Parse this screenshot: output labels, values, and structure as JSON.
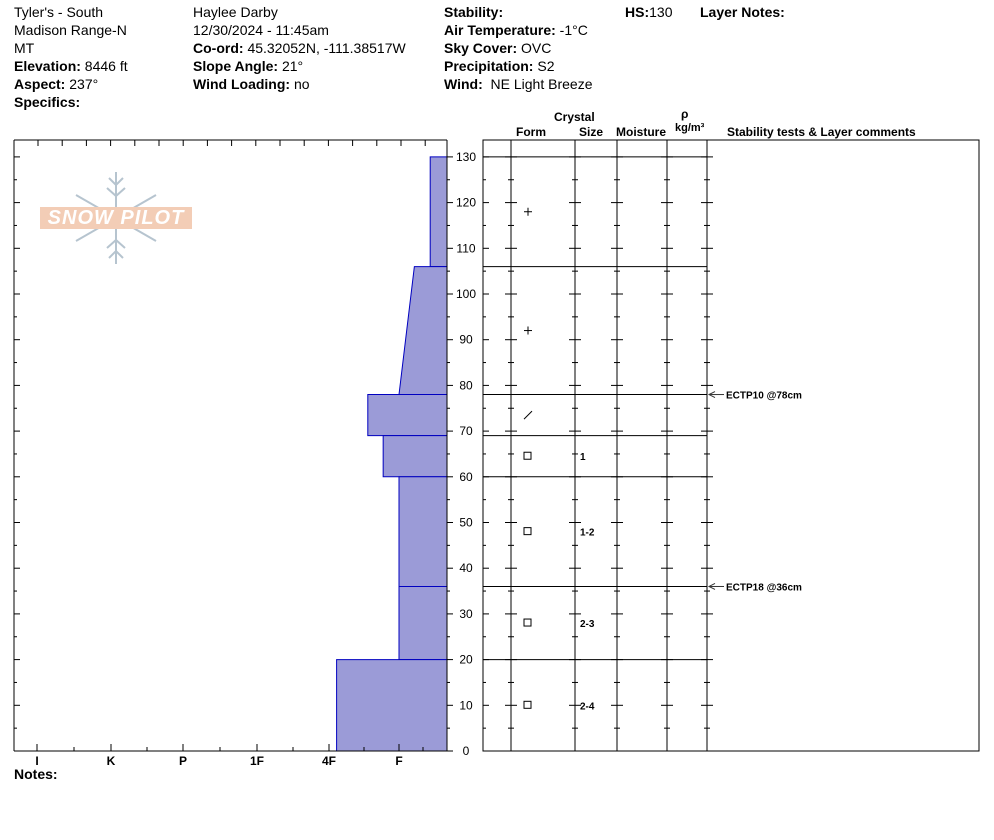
{
  "header": {
    "location": [
      "Tyler's - South",
      "Madison Range-N",
      "MT"
    ],
    "elevation_label": "Elevation:",
    "elevation_value": "8446 ft",
    "aspect_label": "Aspect:",
    "aspect_value": "237°",
    "specifics_label": "Specifics:",
    "observer": "Haylee Darby",
    "datetime": "12/30/2024 - 11:45am",
    "coord_label": "Co-ord:",
    "coord_value": "45.32052N, -111.38517W",
    "slope_label": "Slope Angle:",
    "slope_value": "21°",
    "wind_loading_label": "Wind Loading:",
    "wind_loading_value": "no",
    "stability_label": "Stability:",
    "stability_value": "",
    "air_temp_label": "Air Temperature:",
    "air_temp_value": "-1°C",
    "sky_label": "Sky Cover:",
    "sky_value": "OVC",
    "precip_label": "Precipitation:",
    "precip_value": "S2",
    "wind_label": "Wind:",
    "wind_value": "NE Light Breeze",
    "hs_label": "HS:",
    "hs_value": "130",
    "layer_notes_label": "Layer Notes:"
  },
  "columns": {
    "crystal": "Crystal",
    "form": "Form",
    "size": "Size",
    "moisture": "Moisture",
    "rho": "ρ",
    "density_unit": "kg/m³",
    "comments": "Stability tests & Layer comments"
  },
  "notes_label": "Notes:",
  "logo_text": "SNOW PILOT",
  "chart_data": {
    "type": "bar",
    "hardness_categories": [
      "I",
      "K",
      "P",
      "1F",
      "4F",
      "F"
    ],
    "depth_range": [
      0,
      130
    ],
    "depth_ticks": [
      0,
      10,
      20,
      30,
      40,
      50,
      60,
      70,
      80,
      90,
      100,
      110,
      120,
      130
    ],
    "layers": [
      {
        "top": 130,
        "bottom": 106,
        "hardness_top": 0.35,
        "hardness_bottom": 0.35,
        "form": "+",
        "size": ""
      },
      {
        "top": 106,
        "bottom": 78,
        "hardness_top": 0.68,
        "hardness_bottom": 1.0,
        "form": "+",
        "size": ""
      },
      {
        "top": 78,
        "bottom": 69,
        "hardness_top": 1.65,
        "hardness_bottom": 1.65,
        "form": "/",
        "size": ""
      },
      {
        "top": 69,
        "bottom": 60,
        "hardness_top": 1.33,
        "hardness_bottom": 1.33,
        "form": "□",
        "size": "1"
      },
      {
        "top": 60,
        "bottom": 36,
        "hardness_top": 1.0,
        "hardness_bottom": 1.0,
        "form": "□",
        "size": "1-2"
      },
      {
        "top": 36,
        "bottom": 20,
        "hardness_top": 1.0,
        "hardness_bottom": 1.0,
        "form": "□",
        "size": "2-3"
      },
      {
        "top": 20,
        "bottom": 0,
        "hardness_top": 2.3,
        "hardness_bottom": 2.3,
        "form": "□",
        "size": "2-4"
      }
    ],
    "layer_boundaries": [
      130,
      106,
      78,
      69,
      60,
      36,
      20
    ],
    "stability_tests": [
      {
        "depth": 78,
        "label": "ECTP10 @78cm"
      },
      {
        "depth": 36,
        "label": "ECTP18 @36cm"
      }
    ],
    "bar_color": "#9b9bd7",
    "outline_color": "#0000c0"
  }
}
